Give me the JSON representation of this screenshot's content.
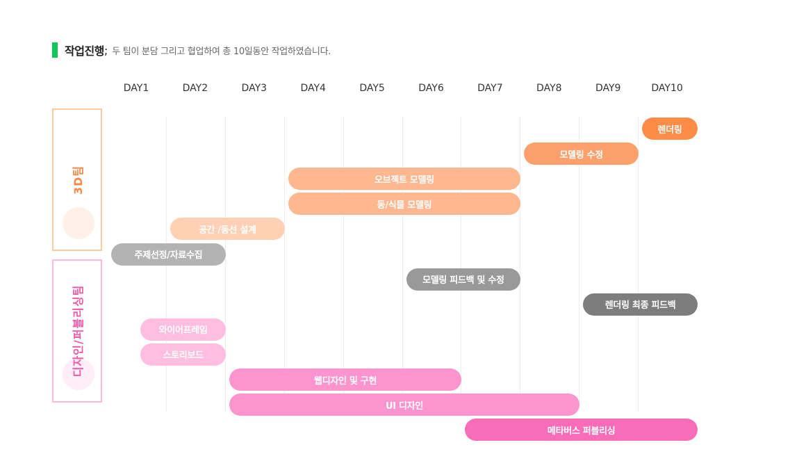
{
  "header": {
    "title": "작업진행",
    "separator": ";",
    "description": "두 팀이 분담 그리고 협업하여 총 10일동안 작업하였습니다."
  },
  "days": [
    "DAY1",
    "DAY2",
    "DAY3",
    "DAY4",
    "DAY5",
    "DAY6",
    "DAY7",
    "DAY8",
    "DAY9",
    "DAY10"
  ],
  "teams": [
    {
      "id": "3d",
      "label": "3D팀",
      "color": "#f6884a"
    },
    {
      "id": "design",
      "label": "디자인/퍼블리싱팀",
      "color": "#ec5ba8"
    }
  ],
  "tasks": [
    {
      "label": "렌더링",
      "start_day": 10,
      "end_day": 10,
      "color": "#fc8c47"
    },
    {
      "label": "모델링 수정",
      "start_day": 8,
      "end_day": 9,
      "color": "#fea06b"
    },
    {
      "label": "오브젝트 모델링",
      "start_day": 4,
      "end_day": 7,
      "color": "#ffb78f"
    },
    {
      "label": "동/식물 모델링",
      "start_day": 4,
      "end_day": 7,
      "color": "#ffb78f"
    },
    {
      "label": "공간 /동선 설계",
      "start_day": 2,
      "end_day": 3,
      "color": "#ffd0b3"
    },
    {
      "label": "주제선정/자료수집",
      "start_day": 1,
      "end_day": 2,
      "color": "#b3b3b3"
    },
    {
      "label": "모델링 피드백 및 수정",
      "start_day": 6,
      "end_day": 7,
      "color": "#999999"
    },
    {
      "label": "렌더링 최종 피드백",
      "start_day": 9,
      "end_day": 10,
      "color": "#7d7d7d"
    },
    {
      "label": "와이어프레임",
      "start_day": 1.5,
      "end_day": 2,
      "color": "#ffbddf"
    },
    {
      "label": "스토리보드",
      "start_day": 1.5,
      "end_day": 2,
      "color": "#ffbddf"
    },
    {
      "label": "웹디자인 및 구현",
      "start_day": 3,
      "end_day": 6,
      "color": "#fc95cf"
    },
    {
      "label": "UI 디자인",
      "start_day": 3,
      "end_day": 8,
      "color": "#fc95cf"
    },
    {
      "label": "메타버스 퍼블리싱",
      "start_day": 7,
      "end_day": 10,
      "color": "#f96cb7"
    }
  ]
}
